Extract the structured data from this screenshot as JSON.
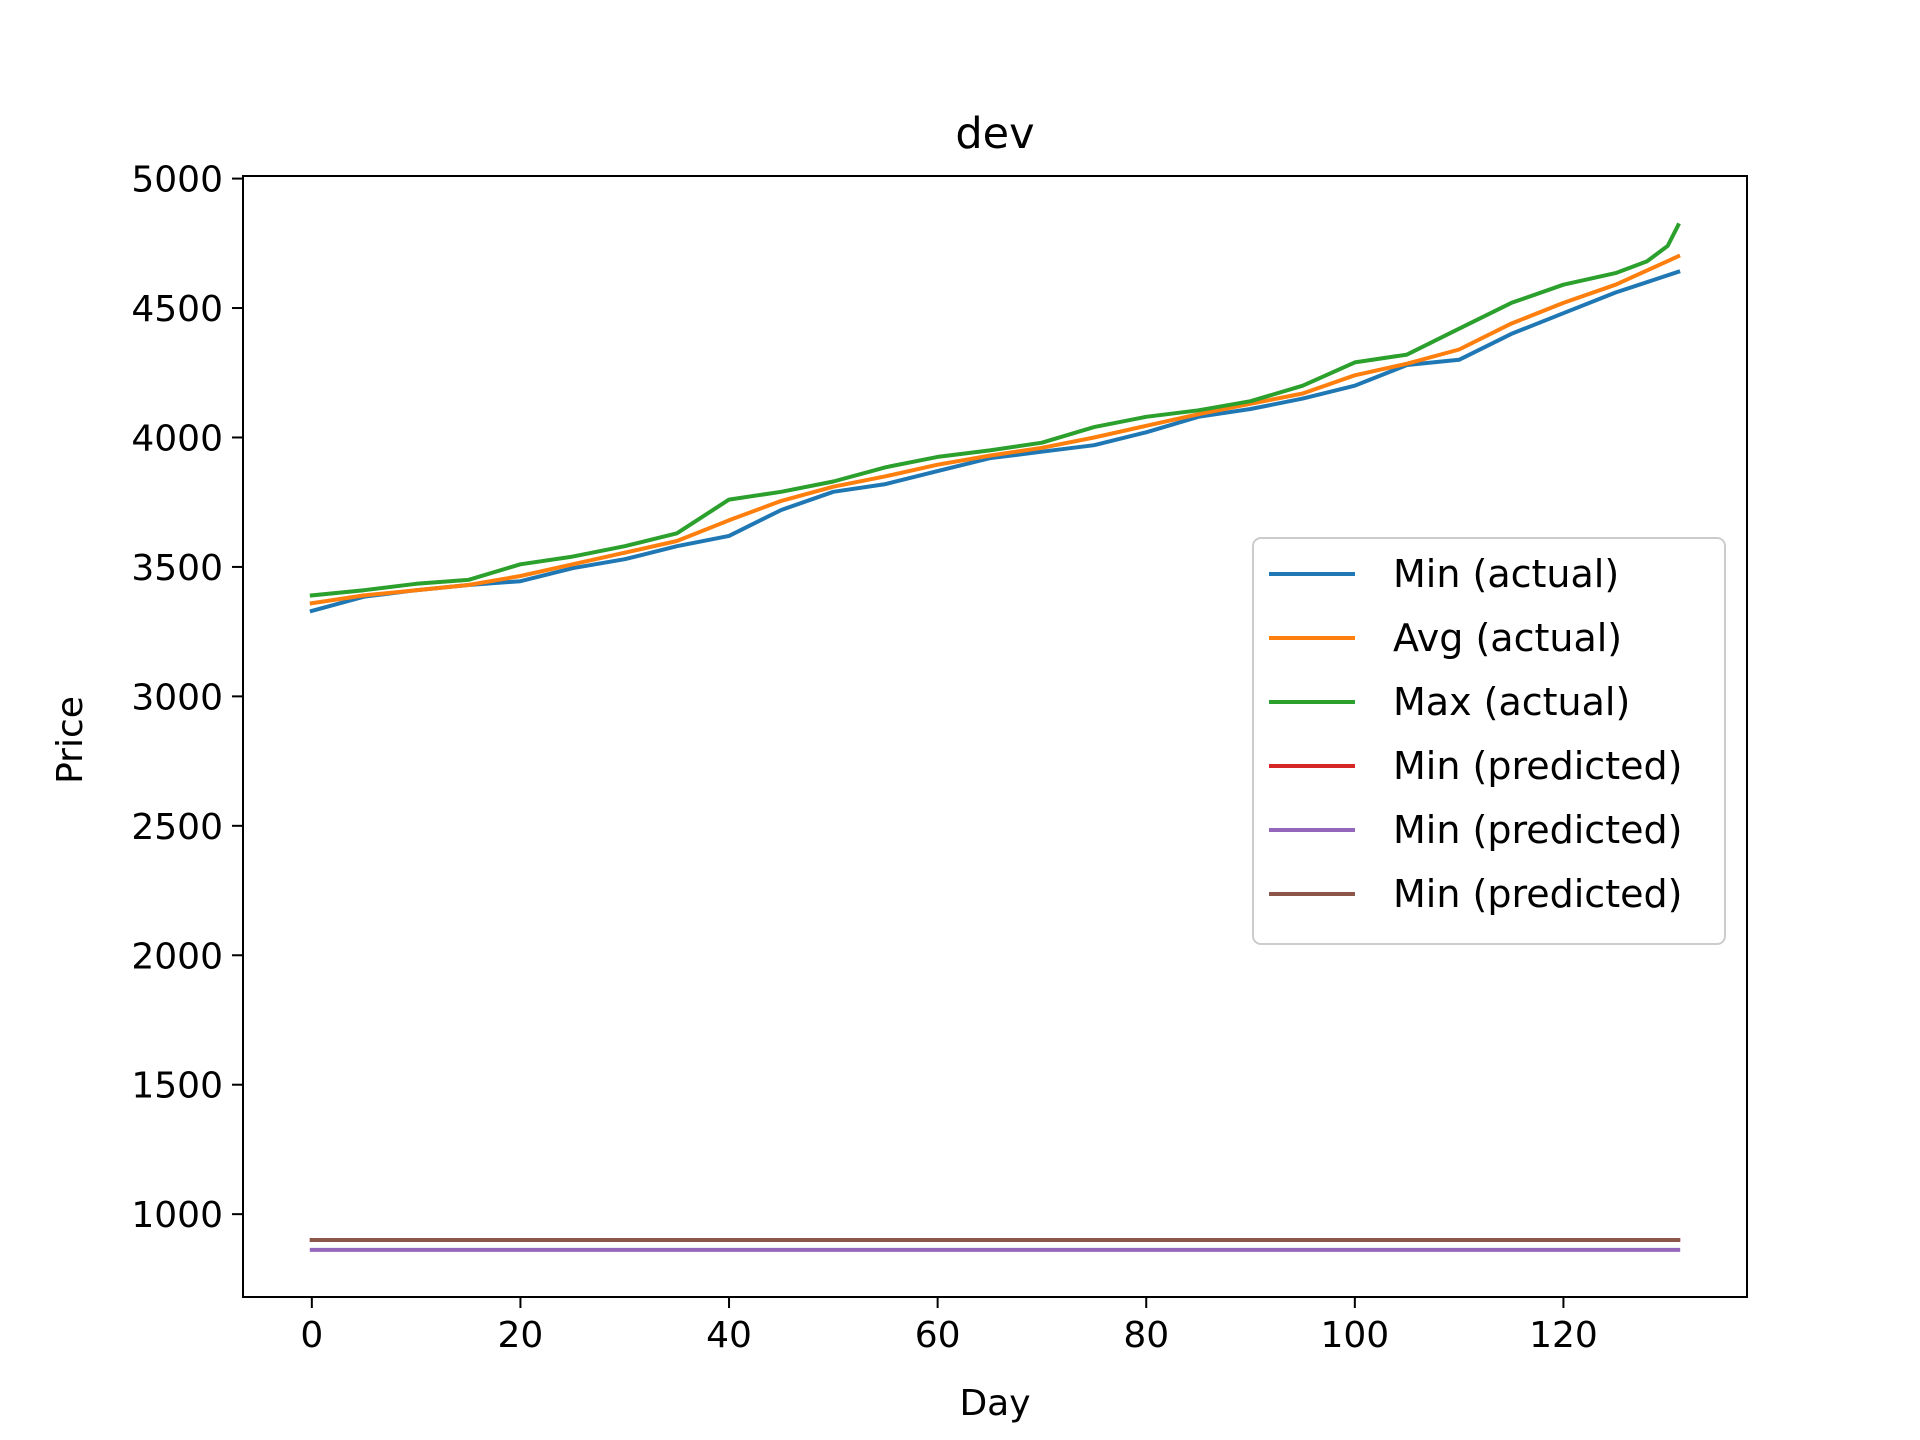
{
  "chart_data": {
    "type": "line",
    "title": "dev",
    "xlabel": "Day",
    "ylabel": "Price",
    "xlim": [
      -6.6,
      137.6
    ],
    "ylim": [
      680,
      5010
    ],
    "xticks": [
      0,
      20,
      40,
      60,
      80,
      100,
      120
    ],
    "yticks": [
      1000,
      1500,
      2000,
      2500,
      3000,
      3500,
      4000,
      4500,
      5000
    ],
    "grid": false,
    "legend_position": "center-right",
    "series": [
      {
        "name": "Min (actual)",
        "color": "#1f77b4",
        "x": [
          0,
          5,
          10,
          15,
          20,
          25,
          30,
          35,
          40,
          45,
          50,
          55,
          60,
          65,
          70,
          75,
          80,
          85,
          90,
          95,
          100,
          105,
          110,
          115,
          120,
          125,
          131
        ],
        "y": [
          3330,
          3385,
          3410,
          3430,
          3445,
          3495,
          3530,
          3580,
          3620,
          3720,
          3790,
          3820,
          3870,
          3920,
          3945,
          3970,
          4020,
          4080,
          4110,
          4150,
          4200,
          4280,
          4300,
          4400,
          4480,
          4560,
          4640
        ]
      },
      {
        "name": "Avg (actual)",
        "color": "#ff7f0e",
        "x": [
          0,
          5,
          10,
          15,
          20,
          25,
          30,
          35,
          40,
          45,
          50,
          55,
          60,
          65,
          70,
          75,
          80,
          85,
          90,
          95,
          100,
          105,
          110,
          115,
          120,
          125,
          131
        ],
        "y": [
          3360,
          3390,
          3410,
          3430,
          3465,
          3510,
          3555,
          3600,
          3680,
          3755,
          3810,
          3850,
          3895,
          3930,
          3960,
          4000,
          4045,
          4090,
          4130,
          4170,
          4240,
          4285,
          4340,
          4440,
          4520,
          4590,
          4700
        ]
      },
      {
        "name": "Max (actual)",
        "color": "#2ca02c",
        "x": [
          0,
          5,
          10,
          15,
          20,
          25,
          30,
          35,
          40,
          45,
          50,
          55,
          60,
          65,
          70,
          75,
          80,
          85,
          90,
          95,
          100,
          105,
          110,
          115,
          120,
          125,
          128,
          130,
          131
        ],
        "y": [
          3390,
          3410,
          3435,
          3450,
          3510,
          3540,
          3580,
          3630,
          3760,
          3790,
          3830,
          3885,
          3925,
          3950,
          3980,
          4040,
          4080,
          4105,
          4140,
          4200,
          4290,
          4320,
          4420,
          4520,
          4590,
          4635,
          4680,
          4740,
          4820
        ]
      },
      {
        "name": "Min (predicted)",
        "color": "#d62728",
        "x": [
          0,
          131
        ],
        "y": [
          900,
          900
        ]
      },
      {
        "name": "Min (predicted)",
        "color": "#9467bd",
        "x": [
          0,
          131
        ],
        "y": [
          862,
          862
        ]
      },
      {
        "name": "Min (predicted)",
        "color": "#8c564b",
        "x": [
          0,
          131
        ],
        "y": [
          900,
          900
        ]
      }
    ]
  }
}
